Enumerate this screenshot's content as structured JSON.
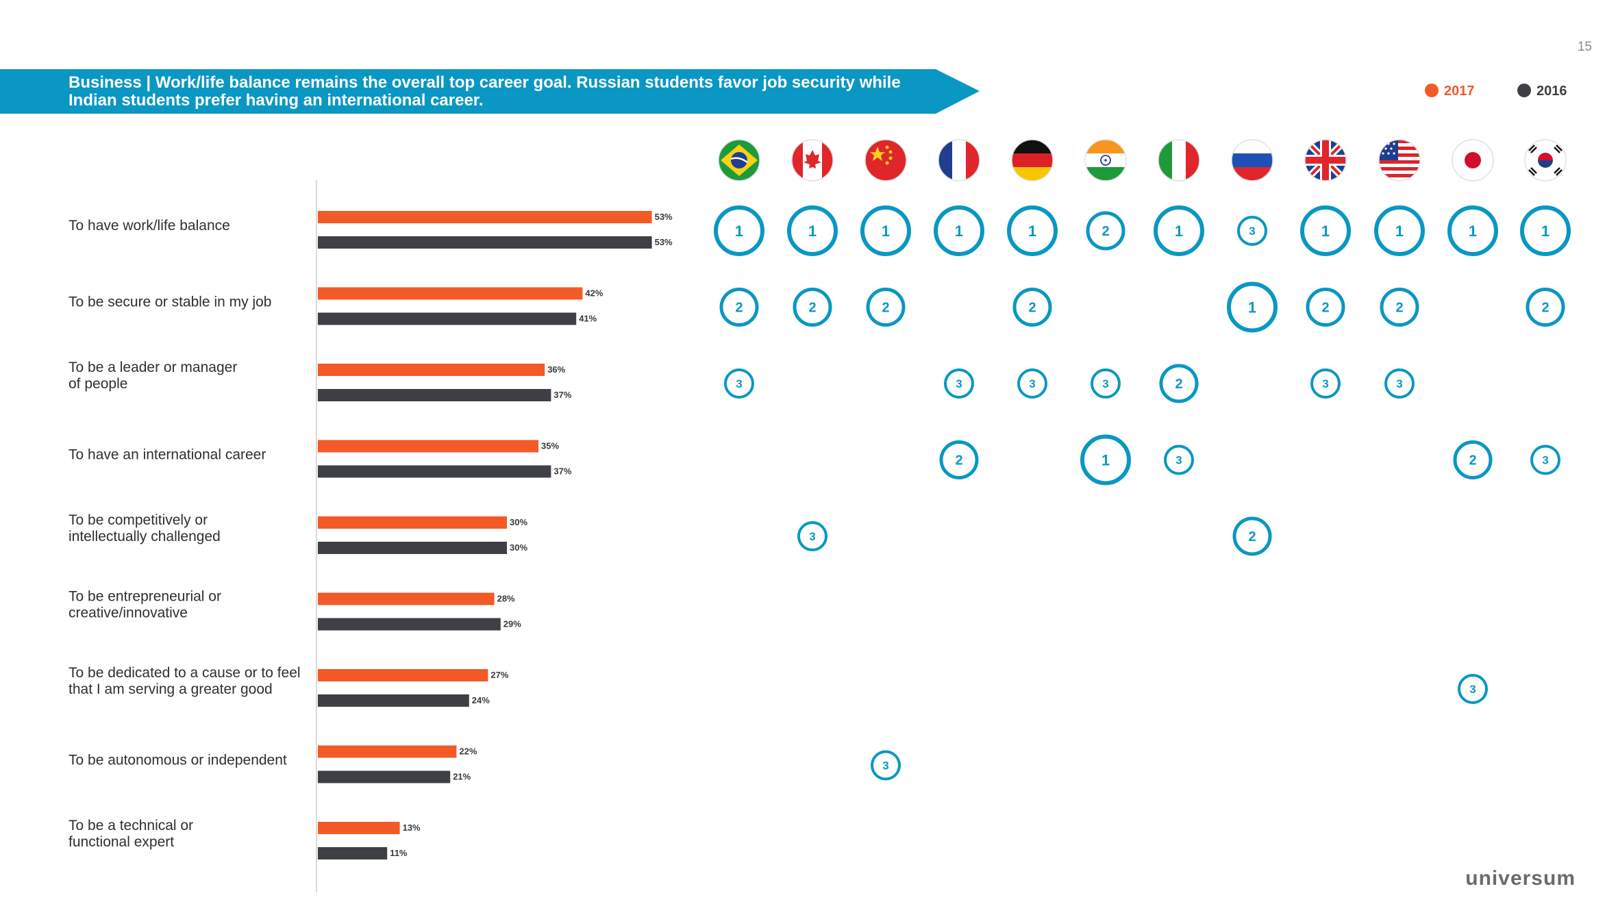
{
  "page_number": "15",
  "header": {
    "title_line1": "Business | Work/life balance remains the overall top career goal. Russian students favor job security while",
    "title_line2": "Indian students prefer having an international career."
  },
  "legend": {
    "label_2017": "2017",
    "label_2016": "2016"
  },
  "colors": {
    "accent_2017": "#f25a27",
    "accent_2016": "#3f4045",
    "rank_ring": "#0a97c3",
    "banner": "#0a97c3"
  },
  "logo": "universum",
  "chart_data": {
    "type": "bar",
    "orientation": "horizontal",
    "categories": [
      [
        "To have work/life balance"
      ],
      [
        "To be secure or stable in my job"
      ],
      [
        "To be a leader or manager",
        "of people"
      ],
      [
        "To have an international career"
      ],
      [
        "To be competitively or",
        "intellectually challenged"
      ],
      [
        "To be entrepreneurial or",
        "creative/innovative"
      ],
      [
        "To be dedicated to a cause or to feel",
        "that I am serving a greater good"
      ],
      [
        "To be autonomous or independent"
      ],
      [
        "To be a technical or",
        "functional expert"
      ]
    ],
    "series": [
      {
        "name": "2017",
        "values": [
          53,
          42,
          36,
          35,
          30,
          28,
          27,
          22,
          13
        ],
        "labels": [
          "53%",
          "42%",
          "36%",
          "35%",
          "30%",
          "28%",
          "27%",
          "22%",
          "13%"
        ]
      },
      {
        "name": "2016",
        "values": [
          53,
          41,
          37,
          37,
          30,
          29,
          24,
          21,
          11
        ],
        "labels": [
          "53%",
          "41%",
          "37%",
          "37%",
          "30%",
          "29%",
          "24%",
          "21%",
          "11%"
        ]
      }
    ],
    "value_unit": "%",
    "xlim": [
      0,
      100
    ]
  },
  "rank_matrix": {
    "countries": [
      {
        "name": "Brazil",
        "flag": "flag-brazil-icon"
      },
      {
        "name": "Canada",
        "flag": "flag-canada-icon"
      },
      {
        "name": "China",
        "flag": "flag-china-icon"
      },
      {
        "name": "France",
        "flag": "flag-france-icon"
      },
      {
        "name": "Germany",
        "flag": "flag-germany-icon"
      },
      {
        "name": "India",
        "flag": "flag-india-icon"
      },
      {
        "name": "Italy",
        "flag": "flag-italy-icon"
      },
      {
        "name": "Russia",
        "flag": "flag-russia-icon"
      },
      {
        "name": "United Kingdom",
        "flag": "flag-uk-icon"
      },
      {
        "name": "United States",
        "flag": "flag-usa-icon"
      },
      {
        "name": "Japan",
        "flag": "flag-japan-icon"
      },
      {
        "name": "South Korea",
        "flag": "flag-south-korea-icon"
      }
    ],
    "ranks": [
      [
        1,
        1,
        1,
        1,
        1,
        2,
        1,
        3,
        1,
        1,
        1,
        1
      ],
      [
        2,
        2,
        2,
        null,
        2,
        null,
        null,
        1,
        2,
        2,
        null,
        2
      ],
      [
        3,
        null,
        null,
        3,
        3,
        3,
        2,
        null,
        3,
        3,
        null,
        null
      ],
      [
        null,
        null,
        null,
        2,
        null,
        1,
        3,
        null,
        null,
        null,
        2,
        3
      ],
      [
        null,
        3,
        null,
        null,
        null,
        null,
        null,
        2,
        null,
        null,
        null,
        null
      ],
      [
        null,
        null,
        null,
        null,
        null,
        null,
        null,
        null,
        null,
        null,
        null,
        null
      ],
      [
        null,
        null,
        null,
        null,
        null,
        null,
        null,
        null,
        null,
        null,
        3,
        null
      ],
      [
        null,
        null,
        3,
        null,
        null,
        null,
        null,
        null,
        null,
        null,
        null,
        null
      ],
      [
        null,
        null,
        null,
        null,
        null,
        null,
        null,
        null,
        null,
        null,
        null,
        null
      ]
    ]
  }
}
